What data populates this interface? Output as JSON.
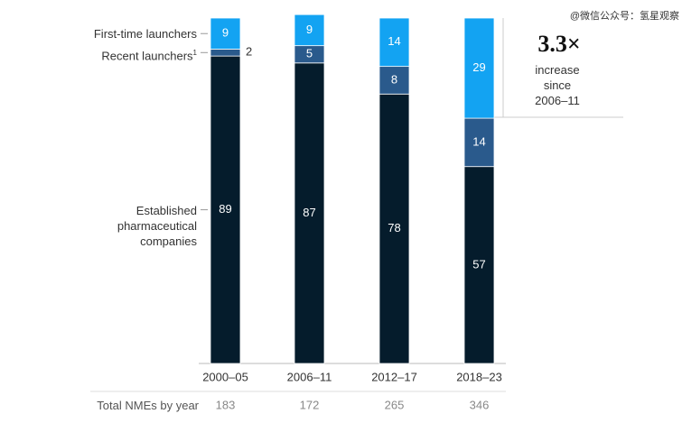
{
  "chart_data": {
    "type": "stacked_bar",
    "categories": [
      "2000–05",
      "2006–11",
      "2012–17",
      "2018–23"
    ],
    "series": [
      {
        "name": "First-time launchers",
        "color": "#13a3f2",
        "values": [
          9,
          9,
          14,
          29
        ]
      },
      {
        "name": "Recent launchers",
        "footnote_marker": "1",
        "color": "#2a5a8c",
        "values": [
          2,
          5,
          8,
          14
        ]
      },
      {
        "name": "Established pharmaceutical companies",
        "color": "#051c2c",
        "values": [
          89,
          87,
          78,
          57
        ]
      }
    ],
    "ylim": [
      0,
      100
    ],
    "totals": {
      "label": "Total NMEs by year",
      "values": [
        183,
        172,
        265,
        346
      ]
    },
    "annotation": {
      "headline": "3.3×",
      "text": "increase since 2006–11"
    },
    "watermark": "@微信公众号：氢星观察"
  }
}
